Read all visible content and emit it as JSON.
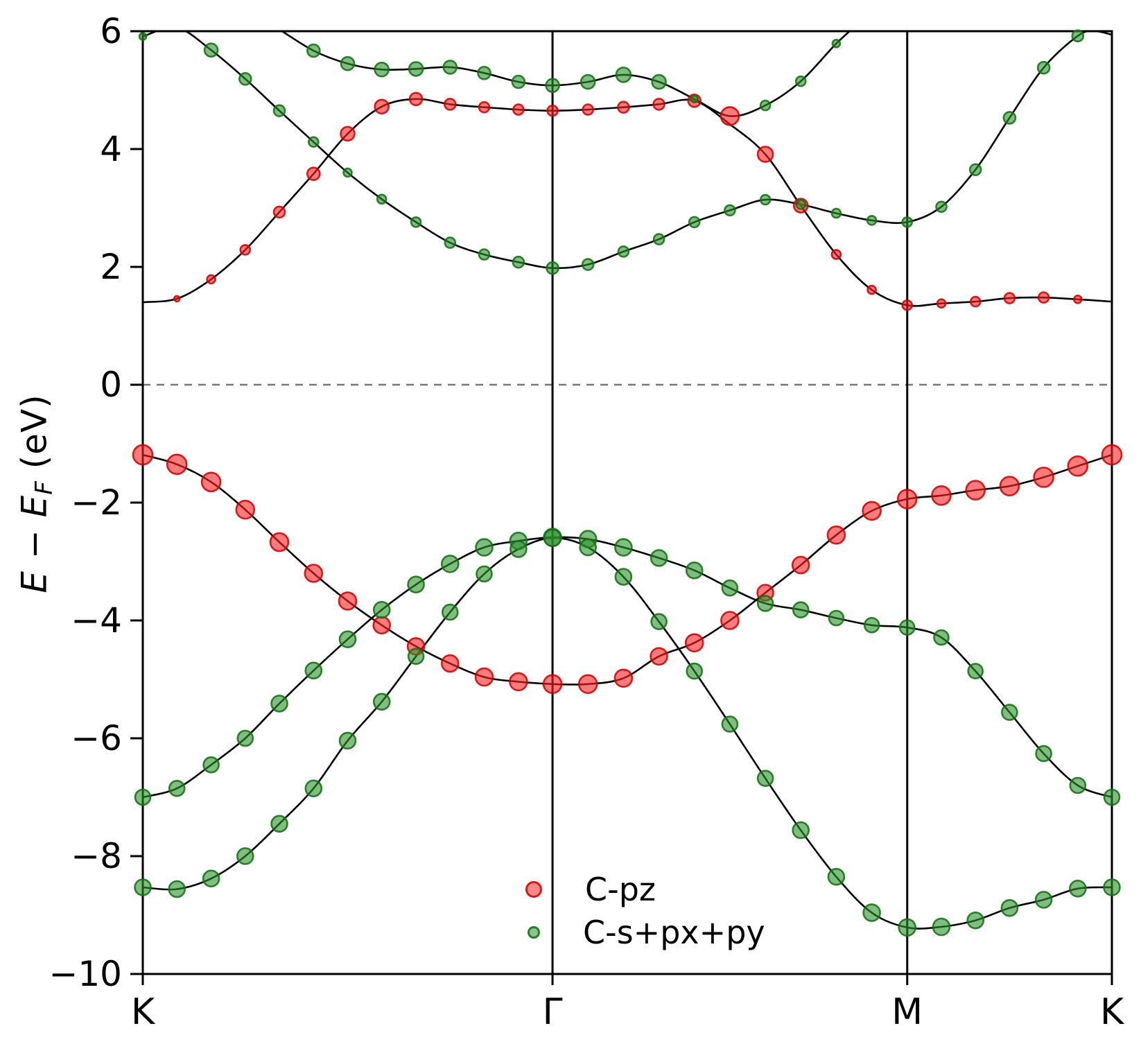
{
  "chart_data": {
    "type": "line",
    "subtype": "band-structure-fatbands",
    "title": "",
    "ylabel_text": "E − E_F (eV)",
    "ylabel_parts": {
      "e1": "E",
      "minus": " − ",
      "e2": "E",
      "sub": "F",
      "unit": " (eV)"
    },
    "ylim": [
      -10,
      6
    ],
    "yticks": [
      {
        "v": 6,
        "label": "6"
      },
      {
        "v": 4,
        "label": "4"
      },
      {
        "v": 2,
        "label": "2"
      },
      {
        "v": 0,
        "label": "0"
      },
      {
        "v": -2,
        "label": "−2"
      },
      {
        "v": -4,
        "label": "−4"
      },
      {
        "v": -6,
        "label": "−6"
      },
      {
        "v": -8,
        "label": "−8"
      },
      {
        "v": -10,
        "label": "−10"
      }
    ],
    "xticks": [
      {
        "k": 0.0,
        "label": "K"
      },
      {
        "k": 0.4228,
        "label": "Γ"
      },
      {
        "k": 0.7888,
        "label": "M"
      },
      {
        "k": 1.0,
        "label": "K"
      }
    ],
    "fermi_level": 0,
    "grid": "vertical lines at interior high-symmetry points, dashed horizontal line at E=0",
    "legend_position": "lower center-left inside axes",
    "legend": [
      {
        "label": "C-pz",
        "marker": "red-circle-icon"
      },
      {
        "label": "C-s+px+py",
        "marker": "green-circle-icon"
      }
    ],
    "colors": {
      "band_line": "#000000",
      "frame": "#000000",
      "fermi_line": "#777777",
      "red_fill": "rgba(255,35,35,0.60)",
      "red_edge": "rgba(206,2,2,0.88)",
      "green_fill": "rgba(44,146,44,0.60)",
      "green_edge": "rgba(22,112,22,0.88)"
    },
    "bands": [
      {
        "name": "pi-valence",
        "marker": "r",
        "points": [
          [
            0.0,
            -1.19,
            14
          ],
          [
            0.0352,
            -1.35,
            14
          ],
          [
            0.0705,
            -1.65,
            13.5
          ],
          [
            0.1057,
            -2.12,
            13
          ],
          [
            0.1409,
            -2.67,
            13
          ],
          [
            0.1762,
            -3.2,
            12.5
          ],
          [
            0.2114,
            -3.67,
            12.5
          ],
          [
            0.2466,
            -4.08,
            12
          ],
          [
            0.2819,
            -4.44,
            12
          ],
          [
            0.3171,
            -4.73,
            12
          ],
          [
            0.3523,
            -4.96,
            12.5
          ],
          [
            0.3876,
            -5.04,
            12.5
          ],
          [
            0.4228,
            -5.08,
            13
          ],
          [
            0.4594,
            -5.08,
            13
          ],
          [
            0.496,
            -4.98,
            12.5
          ],
          [
            0.5326,
            -4.61,
            12
          ],
          [
            0.5692,
            -4.38,
            12.5
          ],
          [
            0.6058,
            -4.0,
            12.5
          ],
          [
            0.6424,
            -3.53,
            11.5
          ],
          [
            0.679,
            -3.06,
            12
          ],
          [
            0.7156,
            -2.55,
            12.5
          ],
          [
            0.7522,
            -2.14,
            13
          ],
          [
            0.7888,
            -1.94,
            13.5
          ],
          [
            0.824,
            -1.88,
            13.5
          ],
          [
            0.8592,
            -1.79,
            13.5
          ],
          [
            0.8944,
            -1.72,
            13.5
          ],
          [
            0.9296,
            -1.57,
            14
          ],
          [
            0.9648,
            -1.38,
            14
          ],
          [
            1.0,
            -1.19,
            14
          ]
        ]
      },
      {
        "name": "sigma1-valence",
        "marker": "g",
        "points": [
          [
            0.0,
            -7.0,
            11
          ],
          [
            0.0352,
            -6.85,
            11
          ],
          [
            0.0705,
            -6.45,
            11
          ],
          [
            0.1057,
            -6.0,
            11
          ],
          [
            0.1409,
            -5.41,
            11.5
          ],
          [
            0.1762,
            -4.85,
            11.5
          ],
          [
            0.2114,
            -4.32,
            11.5
          ],
          [
            0.2466,
            -3.82,
            11.5
          ],
          [
            0.2819,
            -3.39,
            11.5
          ],
          [
            0.3171,
            -3.04,
            12
          ],
          [
            0.3523,
            -2.76,
            12
          ],
          [
            0.3876,
            -2.65,
            12
          ],
          [
            0.4228,
            -2.59,
            12.5
          ],
          [
            0.4594,
            -2.62,
            12
          ],
          [
            0.496,
            -2.76,
            12
          ],
          [
            0.5326,
            -2.94,
            11.5
          ],
          [
            0.5692,
            -3.15,
            11.5
          ],
          [
            0.6058,
            -3.45,
            11
          ],
          [
            0.6424,
            -3.71,
            11
          ],
          [
            0.679,
            -3.82,
            11
          ],
          [
            0.7156,
            -3.96,
            10.5
          ],
          [
            0.7522,
            -4.08,
            10.5
          ],
          [
            0.7888,
            -4.12,
            10.5
          ],
          [
            0.824,
            -4.29,
            10.5
          ],
          [
            0.8592,
            -4.86,
            10.5
          ],
          [
            0.8944,
            -5.56,
            11
          ],
          [
            0.9296,
            -6.26,
            11
          ],
          [
            0.9648,
            -6.8,
            11
          ],
          [
            1.0,
            -7.0,
            11
          ]
        ]
      },
      {
        "name": "sigma2-valence",
        "marker": "g",
        "points": [
          [
            0.0,
            -8.53,
            11.5
          ],
          [
            0.0352,
            -8.56,
            11.5
          ],
          [
            0.0705,
            -8.38,
            11.5
          ],
          [
            0.1057,
            -8.0,
            11.5
          ],
          [
            0.1409,
            -7.45,
            11.5
          ],
          [
            0.1762,
            -6.85,
            11.5
          ],
          [
            0.2114,
            -6.04,
            11.5
          ],
          [
            0.2466,
            -5.38,
            11.5
          ],
          [
            0.2819,
            -4.61,
            11
          ],
          [
            0.3171,
            -3.86,
            11
          ],
          [
            0.3523,
            -3.21,
            11
          ],
          [
            0.3876,
            -2.79,
            11.5
          ],
          [
            0.4228,
            -2.6,
            12
          ],
          [
            0.4594,
            -2.76,
            11.5
          ],
          [
            0.496,
            -3.26,
            11.5
          ],
          [
            0.5326,
            -4.02,
            11
          ],
          [
            0.5692,
            -4.86,
            11
          ],
          [
            0.6058,
            -5.76,
            11
          ],
          [
            0.6424,
            -6.68,
            11
          ],
          [
            0.679,
            -7.56,
            11.5
          ],
          [
            0.7156,
            -8.35,
            11.5
          ],
          [
            0.7522,
            -8.96,
            12
          ],
          [
            0.7888,
            -9.21,
            12
          ],
          [
            0.824,
            -9.2,
            12
          ],
          [
            0.8592,
            -9.09,
            11.5
          ],
          [
            0.8944,
            -8.88,
            11.5
          ],
          [
            0.9296,
            -8.74,
            11.5
          ],
          [
            0.9648,
            -8.55,
            11.5
          ],
          [
            1.0,
            -8.53,
            11.5
          ]
        ]
      },
      {
        "name": "pi-star-conduction",
        "marker": "r",
        "points": [
          [
            0.0,
            1.4,
            0
          ],
          [
            0.0352,
            1.46,
            4
          ],
          [
            0.0705,
            1.79,
            6
          ],
          [
            0.1057,
            2.29,
            7
          ],
          [
            0.1409,
            2.93,
            8
          ],
          [
            0.1762,
            3.58,
            9
          ],
          [
            0.2114,
            4.26,
            10
          ],
          [
            0.2466,
            4.72,
            10
          ],
          [
            0.2819,
            4.85,
            9
          ],
          [
            0.3171,
            4.76,
            8
          ],
          [
            0.3523,
            4.71,
            7.5
          ],
          [
            0.3876,
            4.67,
            7.5
          ],
          [
            0.4228,
            4.65,
            7.5
          ],
          [
            0.4594,
            4.67,
            7.5
          ],
          [
            0.496,
            4.71,
            8
          ],
          [
            0.5326,
            4.76,
            8
          ],
          [
            0.5692,
            4.82,
            9
          ],
          [
            0.6058,
            4.42,
            0
          ],
          [
            0.6424,
            3.91,
            11
          ],
          [
            0.679,
            3.04,
            10
          ],
          [
            0.7156,
            2.21,
            6.5
          ],
          [
            0.7522,
            1.61,
            6
          ],
          [
            0.7888,
            1.35,
            7
          ],
          [
            0.824,
            1.38,
            6
          ],
          [
            0.8592,
            1.41,
            7
          ],
          [
            0.8944,
            1.47,
            7.5
          ],
          [
            0.9296,
            1.48,
            7.5
          ],
          [
            0.9648,
            1.45,
            5.5
          ],
          [
            1.0,
            1.41,
            0
          ]
        ]
      },
      {
        "name": "sigma-star-A-conduction",
        "marker": "g",
        "points": [
          [
            0.0,
            5.91,
            5
          ],
          [
            0.0352,
            6.06,
            0
          ],
          [
            0.0705,
            5.68,
            9.5
          ],
          [
            0.1057,
            5.19,
            8.5
          ],
          [
            0.1409,
            4.65,
            8
          ],
          [
            0.1762,
            4.12,
            7
          ],
          [
            0.2114,
            3.6,
            6
          ],
          [
            0.2466,
            3.15,
            6.5
          ],
          [
            0.2819,
            2.76,
            7
          ],
          [
            0.3171,
            2.41,
            7.5
          ],
          [
            0.3523,
            2.21,
            7.5
          ],
          [
            0.3876,
            2.08,
            8
          ],
          [
            0.4228,
            1.98,
            8.5
          ],
          [
            0.4594,
            2.04,
            8
          ],
          [
            0.496,
            2.26,
            7.5
          ],
          [
            0.5326,
            2.47,
            7.5
          ],
          [
            0.5692,
            2.76,
            7.5
          ],
          [
            0.6058,
            2.96,
            7.5
          ],
          [
            0.6424,
            3.14,
            7
          ],
          [
            0.679,
            3.06,
            6.5
          ],
          [
            0.7156,
            2.91,
            6.5
          ],
          [
            0.7522,
            2.79,
            6.5
          ],
          [
            0.7888,
            2.76,
            7
          ],
          [
            0.824,
            3.02,
            7.5
          ],
          [
            0.8592,
            3.65,
            8
          ],
          [
            0.8944,
            4.53,
            8.5
          ],
          [
            0.9296,
            5.38,
            8.5
          ],
          [
            0.9648,
            5.92,
            8
          ],
          [
            0.982,
            6.0,
            0
          ],
          [
            1.0,
            5.94,
            0
          ]
        ]
      },
      {
        "name": "sigma-star-B-conduction",
        "marker": "g",
        "points": [
          [
            0.1409,
            6.03,
            0
          ],
          [
            0.1762,
            5.67,
            9
          ],
          [
            0.2114,
            5.45,
            9.5
          ],
          [
            0.2466,
            5.35,
            10
          ],
          [
            0.2819,
            5.36,
            10
          ],
          [
            0.3171,
            5.39,
            9.5
          ],
          [
            0.3523,
            5.29,
            9
          ],
          [
            0.3876,
            5.14,
            9
          ],
          [
            0.4228,
            5.08,
            9.5
          ],
          [
            0.4594,
            5.14,
            10
          ],
          [
            0.496,
            5.26,
            10.5
          ],
          [
            0.5326,
            5.14,
            10
          ],
          [
            0.5692,
            4.85,
            5
          ],
          [
            0.6058,
            4.56,
            13,
            "r"
          ],
          [
            0.6424,
            4.74,
            7
          ],
          [
            0.679,
            5.15,
            7
          ],
          [
            0.7156,
            5.79,
            5.5
          ],
          [
            0.74,
            6.15,
            0
          ]
        ]
      }
    ]
  }
}
